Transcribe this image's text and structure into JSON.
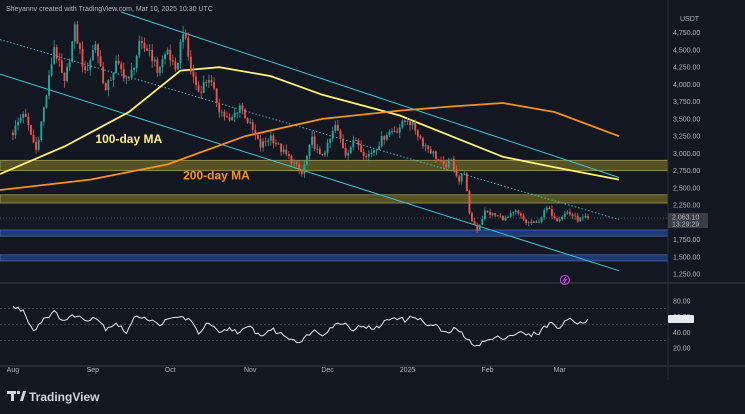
{
  "header": {
    "attribution": "Sheyannv created with TradingView.com, Mar 10, 2025 10:30 UTC"
  },
  "logo": {
    "text": "TradingView"
  },
  "colors": {
    "background": "#131722",
    "up": "#26a69a",
    "down": "#ef5350",
    "candle_wick": "#d1d4dc",
    "ma100": "#fff176",
    "ma200": "#f7931a",
    "channel": "#3ec8d8",
    "zone_yellow": "#5d5a26",
    "zone_blue": "#1f3c7a",
    "rsi": "#e6e8ee",
    "price_label": "#3a3d45"
  },
  "chart_data": [
    {
      "type": "candlestick",
      "price_scale_label": "USDT",
      "ylim": [
        1150,
        5050
      ],
      "y_ticks": [
        "4,750.00",
        "4,500.00",
        "4,250.00",
        "4,000.00",
        "3,750.00",
        "3,500.00",
        "3,250.00",
        "3,000.00",
        "2,750.00",
        "2,500.00",
        "2,250.00",
        "2,000.00",
        "1,750.00",
        "1,500.00",
        "1,250.00"
      ],
      "x_ticks": [
        "Aug",
        "Sep",
        "Oct",
        "Nov",
        "Dec",
        "2025",
        "Feb",
        "Mar"
      ],
      "x_tick_days": [
        0,
        31,
        61,
        92,
        122,
        153,
        184,
        212
      ],
      "xlim_days": [
        -5,
        254
      ],
      "current_price_label": "2,063.10",
      "countdown_label": "13:29:29",
      "close_anchors": [
        [
          0,
          3300
        ],
        [
          4,
          3600
        ],
        [
          9,
          3050
        ],
        [
          13,
          3850
        ],
        [
          16,
          4550
        ],
        [
          20,
          4000
        ],
        [
          24,
          4800
        ],
        [
          28,
          4150
        ],
        [
          32,
          4600
        ],
        [
          36,
          3900
        ],
        [
          40,
          4300
        ],
        [
          45,
          4050
        ],
        [
          49,
          4550
        ],
        [
          53,
          4500
        ],
        [
          56,
          4200
        ],
        [
          60,
          4500
        ],
        [
          63,
          4150
        ],
        [
          66,
          4800
        ],
        [
          69,
          4200
        ],
        [
          72,
          3900
        ],
        [
          76,
          4100
        ],
        [
          80,
          3650
        ],
        [
          84,
          3450
        ],
        [
          88,
          3700
        ],
        [
          92,
          3400
        ],
        [
          96,
          3100
        ],
        [
          100,
          3250
        ],
        [
          104,
          3050
        ],
        [
          108,
          2900
        ],
        [
          112,
          2700
        ],
        [
          116,
          3200
        ],
        [
          119,
          2950
        ],
        [
          122,
          3100
        ],
        [
          125,
          3400
        ],
        [
          129,
          3000
        ],
        [
          133,
          3200
        ],
        [
          137,
          2950
        ],
        [
          141,
          3100
        ],
        [
          145,
          3300
        ],
        [
          149,
          3350
        ],
        [
          153,
          3500
        ],
        [
          156,
          3350
        ],
        [
          159,
          3150
        ],
        [
          163,
          3000
        ],
        [
          167,
          2800
        ],
        [
          170,
          2900
        ],
        [
          173,
          2600
        ],
        [
          175,
          2750
        ],
        [
          177,
          2100
        ],
        [
          180,
          1900
        ],
        [
          183,
          2150
        ],
        [
          187,
          2100
        ],
        [
          191,
          2050
        ],
        [
          195,
          2150
        ],
        [
          199,
          2000
        ],
        [
          203,
          1980
        ],
        [
          207,
          2200
        ],
        [
          211,
          2050
        ],
        [
          215,
          2150
        ],
        [
          219,
          2040
        ],
        [
          223,
          2063
        ]
      ],
      "moving_averages": [
        {
          "label": "100-day MA",
          "points": [
            [
              -5,
              2700
            ],
            [
              20,
              3100
            ],
            [
              45,
              3600
            ],
            [
              65,
              4200
            ],
            [
              80,
              4250
            ],
            [
              100,
              4120
            ],
            [
              120,
              3850
            ],
            [
              150,
              3550
            ],
            [
              170,
              3250
            ],
            [
              190,
              2950
            ],
            [
              210,
              2800
            ],
            [
              235,
              2620
            ]
          ]
        },
        {
          "label": "200-day MA",
          "points": [
            [
              -5,
              2470
            ],
            [
              30,
              2620
            ],
            [
              60,
              2840
            ],
            [
              90,
              3250
            ],
            [
              120,
              3500
            ],
            [
              150,
              3620
            ],
            [
              170,
              3680
            ],
            [
              190,
              3730
            ],
            [
              210,
              3600
            ],
            [
              235,
              3250
            ]
          ]
        }
      ],
      "channel_lines": [
        {
          "points": [
            [
              -5,
              4650
            ],
            [
              235,
              2040
            ]
          ]
        },
        {
          "points": [
            [
              42,
              5050
            ],
            [
              235,
              2650
            ]
          ]
        },
        {
          "points": [
            [
              -5,
              4150
            ],
            [
              235,
              1300
            ]
          ]
        }
      ],
      "zones": [
        {
          "from": 2750,
          "to": 2900
        },
        {
          "from": 2280,
          "to": 2400
        },
        {
          "from": 1800,
          "to": 1890
        },
        {
          "from": 1440,
          "to": 1530
        }
      ]
    },
    {
      "type": "line",
      "ylim": [
        0,
        100
      ],
      "y_ticks": [
        "80.00",
        "60.00",
        "40.00",
        "20.00"
      ],
      "levels": [
        70,
        50,
        30
      ],
      "current_value": 57,
      "values_anchors": [
        [
          0,
          72
        ],
        [
          4,
          68
        ],
        [
          8,
          42
        ],
        [
          12,
          58
        ],
        [
          16,
          65
        ],
        [
          20,
          55
        ],
        [
          24,
          62
        ],
        [
          28,
          56
        ],
        [
          32,
          60
        ],
        [
          36,
          45
        ],
        [
          40,
          52
        ],
        [
          44,
          40
        ],
        [
          48,
          62
        ],
        [
          52,
          58
        ],
        [
          56,
          50
        ],
        [
          60,
          55
        ],
        [
          64,
          60
        ],
        [
          68,
          57
        ],
        [
          72,
          40
        ],
        [
          76,
          52
        ],
        [
          80,
          38
        ],
        [
          84,
          45
        ],
        [
          88,
          40
        ],
        [
          92,
          47
        ],
        [
          96,
          35
        ],
        [
          100,
          44
        ],
        [
          104,
          38
        ],
        [
          108,
          32
        ],
        [
          112,
          28
        ],
        [
          116,
          43
        ],
        [
          120,
          38
        ],
        [
          124,
          48
        ],
        [
          128,
          53
        ],
        [
          132,
          44
        ],
        [
          136,
          49
        ],
        [
          140,
          43
        ],
        [
          144,
          53
        ],
        [
          148,
          60
        ],
        [
          152,
          55
        ],
        [
          156,
          61
        ],
        [
          160,
          50
        ],
        [
          164,
          48
        ],
        [
          168,
          38
        ],
        [
          172,
          46
        ],
        [
          176,
          30
        ],
        [
          180,
          24
        ],
        [
          184,
          30
        ],
        [
          188,
          33
        ],
        [
          192,
          35
        ],
        [
          196,
          40
        ],
        [
          200,
          36
        ],
        [
          204,
          40
        ],
        [
          208,
          52
        ],
        [
          212,
          46
        ],
        [
          216,
          58
        ],
        [
          220,
          52
        ],
        [
          223,
          57
        ]
      ]
    }
  ]
}
